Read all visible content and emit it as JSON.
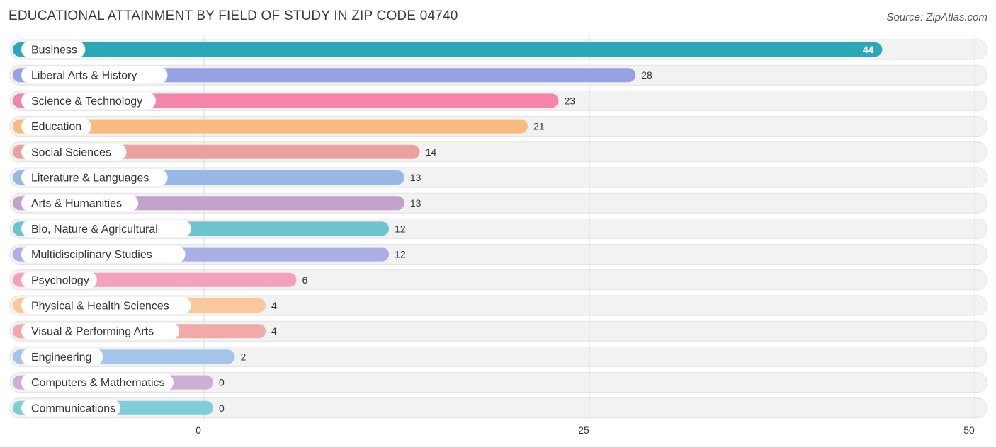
{
  "title": "EDUCATIONAL ATTAINMENT BY FIELD OF STUDY IN ZIP CODE 04740",
  "source": "Source: ZipAtlas.com",
  "chart_data": {
    "type": "bar",
    "orientation": "horizontal",
    "title": "EDUCATIONAL ATTAINMENT BY FIELD OF STUDY IN ZIP CODE 04740",
    "categories": [
      "Business",
      "Liberal Arts & History",
      "Science & Technology",
      "Education",
      "Social Sciences",
      "Literature & Languages",
      "Arts & Humanities",
      "Bio, Nature & Agricultural",
      "Multidisciplinary Studies",
      "Psychology",
      "Physical & Health Sciences",
      "Visual & Performing Arts",
      "Engineering",
      "Computers & Mathematics",
      "Communications"
    ],
    "values": [
      44,
      28,
      23,
      21,
      14,
      13,
      13,
      12,
      12,
      6,
      4,
      4,
      2,
      0,
      0
    ],
    "colors": [
      "#2aa8b8",
      "#95a3e3",
      "#f484a8",
      "#f8bb80",
      "#eba19e",
      "#98b9e6",
      "#c3a2ca",
      "#6ec4cc",
      "#a9b0e8",
      "#f5a0bc",
      "#f9c89c",
      "#f0aaa8",
      "#a5c4ea",
      "#cbb0d4",
      "#7fcdd6"
    ],
    "xlim": [
      0,
      50
    ],
    "xticks": [
      0,
      25,
      50
    ],
    "xlabel": "",
    "ylabel": "",
    "grid": true
  }
}
